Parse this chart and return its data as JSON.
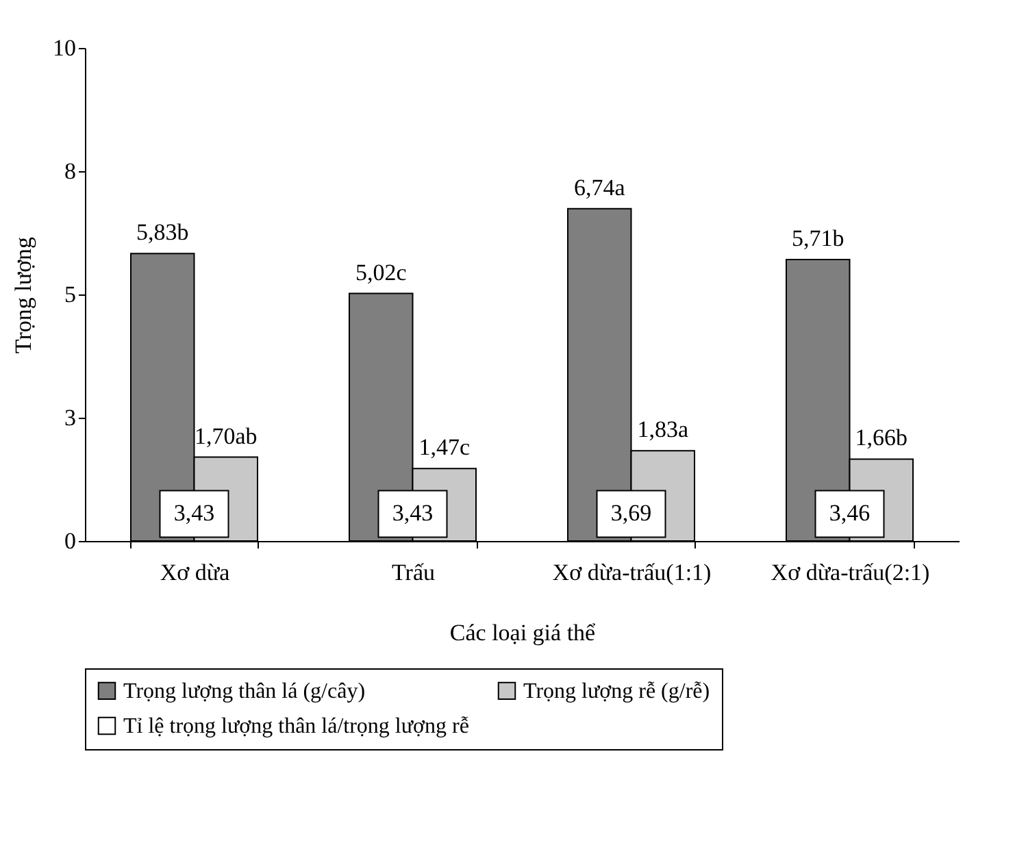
{
  "chart_data": {
    "type": "bar",
    "xlabel": "Các loại giá thể",
    "ylabel": "Trọng lượng",
    "categories": [
      "Xơ dừa",
      "Trấu",
      "Xơ dừa-trấu(1:1)",
      "Xơ dừa-trấu(2:1)"
    ],
    "series": [
      {
        "name": "Trọng lượng thân lá (g/cây)",
        "color": "#7f7f7f",
        "values": [
          5.83,
          5.02,
          6.74,
          5.71
        ],
        "value_labels": [
          "5,83b",
          "5,02c",
          "6,74a",
          "5,71b"
        ]
      },
      {
        "name": "Trọng lượng rễ (g/rễ)",
        "color": "#c8c8c8",
        "values": [
          1.7,
          1.47,
          1.83,
          1.66
        ],
        "value_labels": [
          "1,70ab",
          "1,47c",
          "1,83a",
          "1,66b"
        ]
      },
      {
        "name": "Tỉ lệ trọng lượng thân lá/trọng lượng rễ",
        "color": "#ffffff",
        "values": [
          null,
          null,
          null,
          null
        ]
      }
    ],
    "annotations": [
      {
        "text": "3,43",
        "x": "Xơ dừa",
        "y": 0.55
      },
      {
        "text": "3,43",
        "x": "Trấu",
        "y": 0.55
      },
      {
        "text": "3,69",
        "x": "Xơ dừa-trấu(1:1)",
        "y": 0.55
      },
      {
        "text": "3,46",
        "x": "Xơ dừa-trấu(2:1)",
        "y": 0.55
      }
    ],
    "ylim": [
      0,
      10
    ],
    "yticks": [
      0,
      {
        "value": 2.5,
        "label": "3"
      },
      5,
      {
        "value": 7.5,
        "label": "8"
      },
      10
    ],
    "grid": false,
    "legend": "bottom"
  }
}
